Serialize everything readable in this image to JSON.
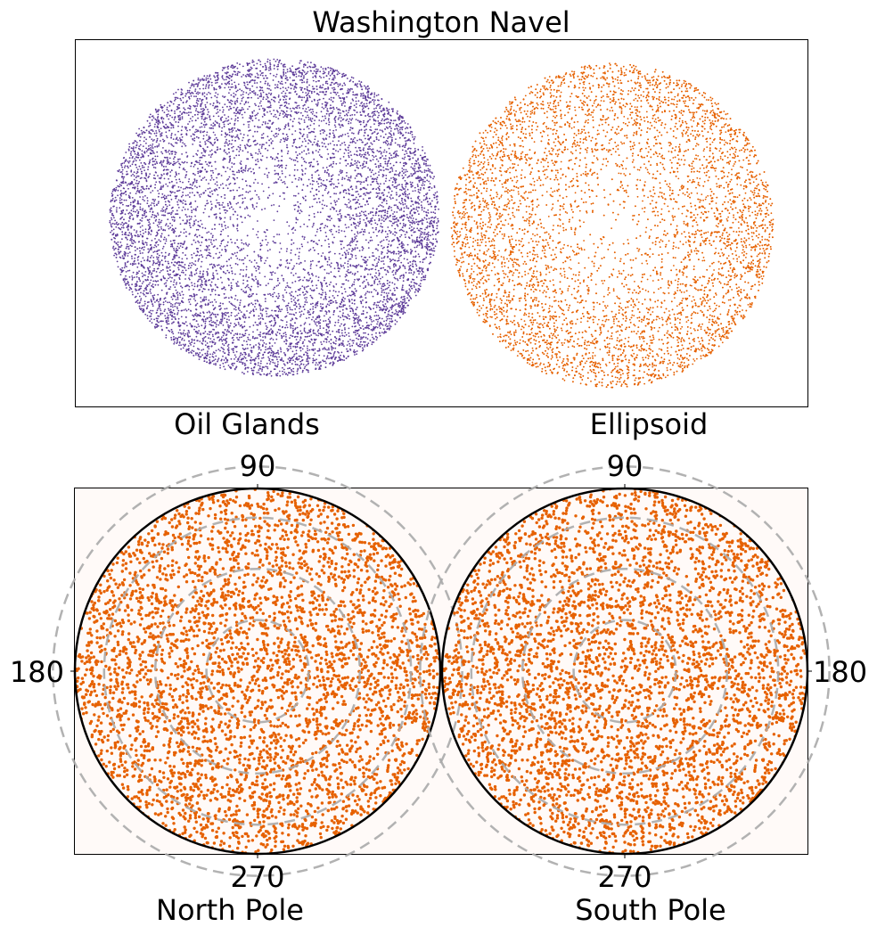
{
  "title": "Washington Navel",
  "colors": {
    "oil_glands": "#5e3c99",
    "ellipsoid": "#e66101",
    "polar_points": "#e66101",
    "polar_background": "#fffaf8",
    "grid_rings": "#aaaaaa"
  },
  "chart_data": [
    {
      "type": "scatter",
      "panel": "top",
      "xticks": [],
      "yticks": [],
      "series": [
        {
          "name": "Oil Glands",
          "color": "#5e3c99",
          "shape": "disc",
          "n_points": 9000,
          "rim_density": "high"
        },
        {
          "name": "Ellipsoid",
          "color": "#e66101",
          "shape": "disc",
          "n_points": 9000,
          "rim_density": "high"
        }
      ],
      "labels": [
        "Oil Glands",
        "Ellipsoid"
      ]
    },
    {
      "type": "scatter",
      "panel": "polar",
      "subplots": [
        {
          "name": "North Pole",
          "angle_labels": {
            "top": "90",
            "side": "180",
            "bottom": "270"
          },
          "side": "left",
          "color": "#e66101",
          "n_points": 4500,
          "rings": 4
        },
        {
          "name": "South Pole",
          "angle_labels": {
            "top": "90",
            "side": "180",
            "bottom": "270"
          },
          "side": "right",
          "color": "#e66101",
          "n_points": 4500,
          "rings": 4
        }
      ]
    }
  ]
}
